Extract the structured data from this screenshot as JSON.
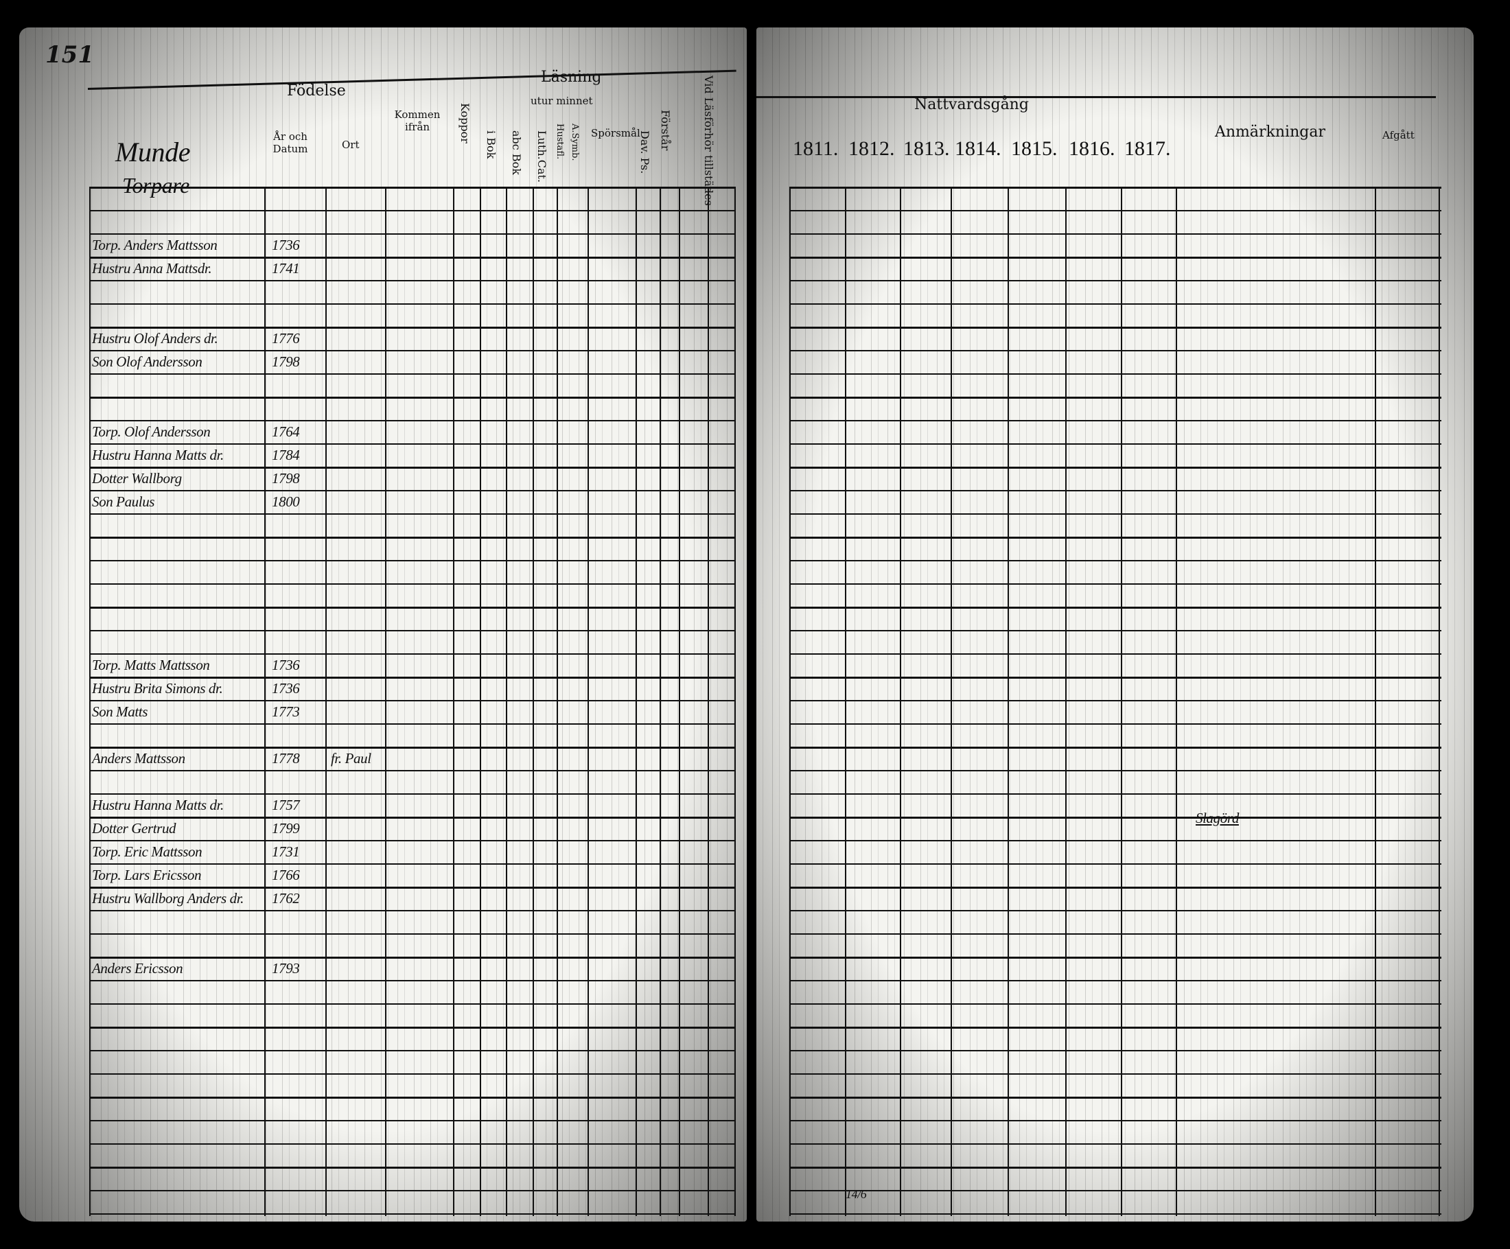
{
  "left_page": {
    "page_number": "151",
    "place": "Munde",
    "category": "Torpare",
    "headers": {
      "birth": "Födelse",
      "birth_date": "År och Datum",
      "birth_place": "Ort",
      "arrived_from": "Kommen ifrån",
      "smallpox": "Koppor",
      "reading": "Läsning",
      "by_heart": "utur minnet",
      "in_book": "i Bok",
      "abc_book": "abc Bok",
      "luther_catechism": "Luth.Cat.",
      "household": "Hustafl.",
      "a_symb": "A.Symb.",
      "questions": "Spörsmål",
      "psalms": "Dav. Ps.",
      "understanding": "Förstår",
      "at_examination": "Vid Läsförhör tillstädes"
    },
    "entries": [
      {
        "name": "Torp. Anders Mattsson",
        "birth": "1736"
      },
      {
        "name": "Hustru Anna Mattsdr.",
        "birth": "1741"
      },
      {
        "name": "Hustru Olof Anders dr.",
        "birth": "1776"
      },
      {
        "name": "Son Olof Andersson",
        "birth": "1798"
      },
      {
        "name": "Torp. Olof Andersson",
        "birth": "1764"
      },
      {
        "name": "Hustru Hanna Matts dr.",
        "birth": "1784"
      },
      {
        "name": "Dotter Wallborg",
        "birth": "1798"
      },
      {
        "name": "Son Paulus",
        "birth": "1800"
      },
      {
        "name": "Torp. Matts Mattsson",
        "birth": "1736"
      },
      {
        "name": "Hustru Brita Simons dr.",
        "birth": "1736"
      },
      {
        "name": "Son Matts",
        "birth": "1773"
      },
      {
        "name": "Anders Mattsson",
        "birth": "1778",
        "place": "fr. Paul"
      },
      {
        "name": "Hustru Hanna Matts dr.",
        "birth": "1757"
      },
      {
        "name": "Dotter Gertrud",
        "birth": "1799"
      },
      {
        "name": "Torp. Eric Mattsson",
        "birth": "1731"
      },
      {
        "name": "Torp. Lars Ericsson",
        "birth": "1766"
      },
      {
        "name": "Hustru Wallborg Anders dr.",
        "birth": "1762"
      },
      {
        "name": "Anders Ericsson",
        "birth": "1793"
      }
    ]
  },
  "right_page": {
    "headers": {
      "communion": "Nattvardsgång",
      "years": [
        "1811.",
        "1812.",
        "1813.",
        "1814.",
        "1815.",
        "1816.",
        "1817."
      ],
      "remarks": "Anmärkningar",
      "departed": "Afgått"
    },
    "remarks_entry": "Slagörd",
    "bottom_date": "14/6"
  }
}
